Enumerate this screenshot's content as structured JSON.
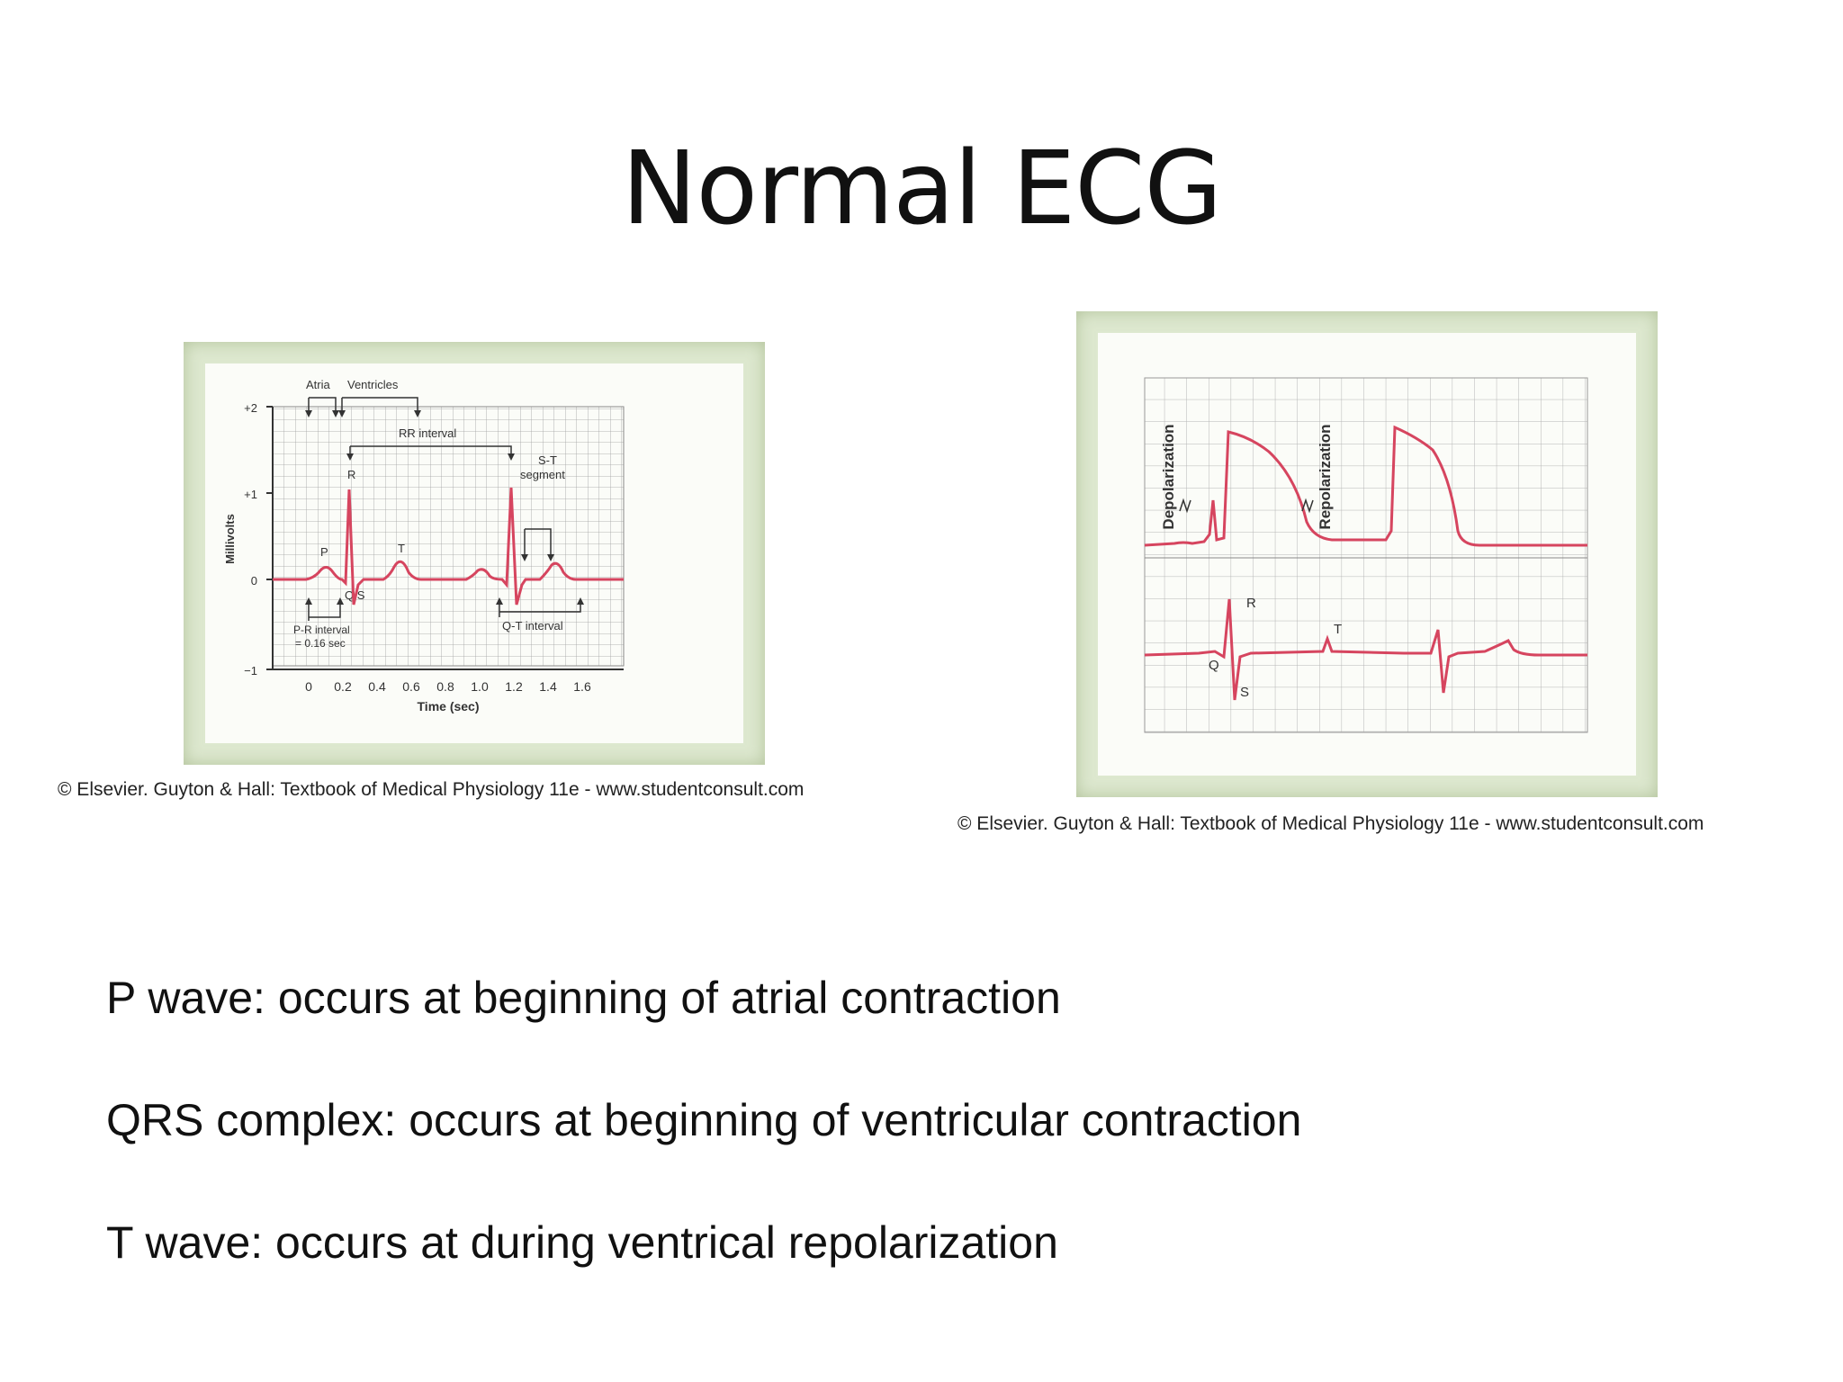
{
  "slide": {
    "title": "Normal ECG",
    "bullets": [
      "P wave: occurs at beginning of atrial contraction",
      "QRS complex: occurs at beginning of ventricular contraction",
      "T wave: occurs at during ventrical repolarization"
    ]
  },
  "figure_left": {
    "credit": "© Elsevier. Guyton & Hall: Textbook of Medical Physiology 11e - www.studentconsult.com",
    "ylabel": "Millivolts",
    "xlabel": "Time (sec)",
    "yticks": [
      "+2",
      "+1",
      "0",
      "−1"
    ],
    "xticks": [
      "0",
      "0.2",
      "0.4",
      "0.6",
      "0.8",
      "1.0",
      "1.2",
      "1.4",
      "1.6"
    ],
    "labels": {
      "atria": "Atria",
      "ventricles": "Ventricles",
      "rr": "RR interval",
      "st1": "S-T",
      "st2": "segment",
      "p": "P",
      "r": "R",
      "t": "T",
      "qs": "Q S",
      "pr1": "P-R interval",
      "pr2": "= 0.16 sec",
      "qt": "Q-T interval"
    },
    "colors": {
      "trace": "#d6455f",
      "grid": "#9a9a9a",
      "frame": "#dde8cf"
    }
  },
  "figure_right": {
    "credit": "© Elsevier. Guyton & Hall: Textbook of Medical Physiology 11e - www.studentconsult.com",
    "labels": {
      "depolarization": "Depolarization",
      "repolarization": "Repolarization",
      "r": "R",
      "q": "Q",
      "s": "S",
      "t": "T"
    },
    "colors": {
      "trace": "#d6455f",
      "grid": "#b5b5b5"
    }
  }
}
